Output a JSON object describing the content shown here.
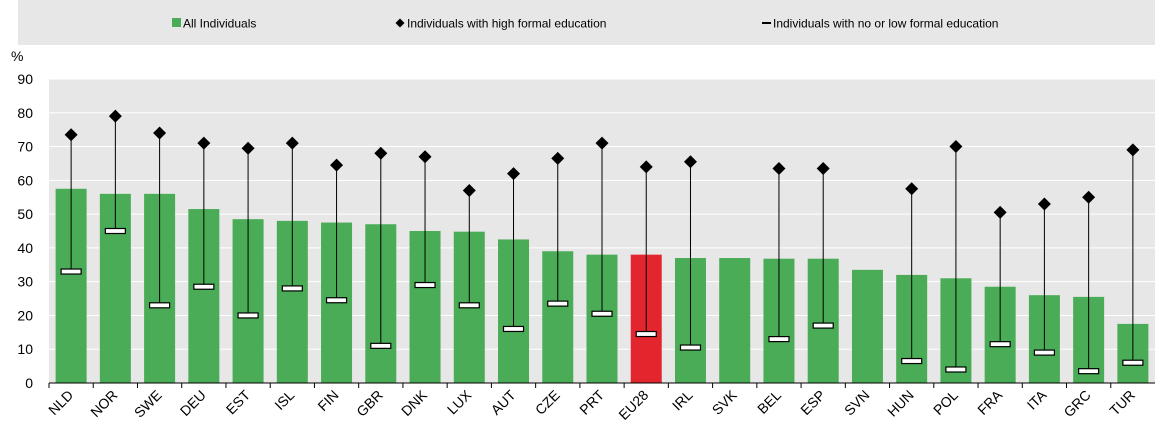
{
  "chart_data": {
    "type": "bar",
    "ylabel": "%",
    "ylim": [
      0,
      90
    ],
    "yticks": [
      0,
      10,
      20,
      30,
      40,
      50,
      60,
      70,
      80,
      90
    ],
    "grid": true,
    "legend_position": "top",
    "categories": [
      "NLD",
      "NOR",
      "SWE",
      "DEU",
      "EST",
      "ISL",
      "FIN",
      "GBR",
      "DNK",
      "LUX",
      "AUT",
      "CZE",
      "PRT",
      "EU28",
      "IRL",
      "SVK",
      "BEL",
      "ESP",
      "SVN",
      "HUN",
      "POL",
      "FRA",
      "ITA",
      "GRC",
      "TUR"
    ],
    "highlight_category": "EU28",
    "series": [
      {
        "name": "All Individuals",
        "marker": "bar",
        "values": [
          57.5,
          56,
          56,
          51.5,
          48.5,
          48,
          47.5,
          47,
          45,
          44.8,
          42.5,
          39,
          38,
          38,
          37,
          37,
          36.8,
          36.8,
          33.5,
          32,
          31,
          28.5,
          26,
          25.5,
          17.5
        ]
      },
      {
        "name": "Individuals with high formal education",
        "marker": "diamond",
        "values": [
          73.5,
          79,
          74,
          71,
          69.5,
          71,
          64.5,
          68,
          67,
          57,
          62,
          66.5,
          71,
          64,
          65.5,
          null,
          63.5,
          63.5,
          null,
          57.5,
          70,
          50.5,
          53,
          55,
          69
        ]
      },
      {
        "name": "Individuals with no or low formal education",
        "marker": "dash",
        "values": [
          33,
          45,
          23,
          28.5,
          20,
          28,
          24.5,
          11,
          29,
          23,
          16,
          23.5,
          20.5,
          14.5,
          10.5,
          null,
          13,
          17,
          null,
          6.5,
          4,
          11.5,
          9,
          3.5,
          6
        ]
      }
    ],
    "colors": {
      "bar": "#4aac56",
      "bar_highlight": "#e3262d",
      "plot_background": "#e7e7e7",
      "gridline": "#ffffff",
      "legend_background": "#e7e7e7",
      "marker": "#000000",
      "text": "#000000"
    }
  }
}
